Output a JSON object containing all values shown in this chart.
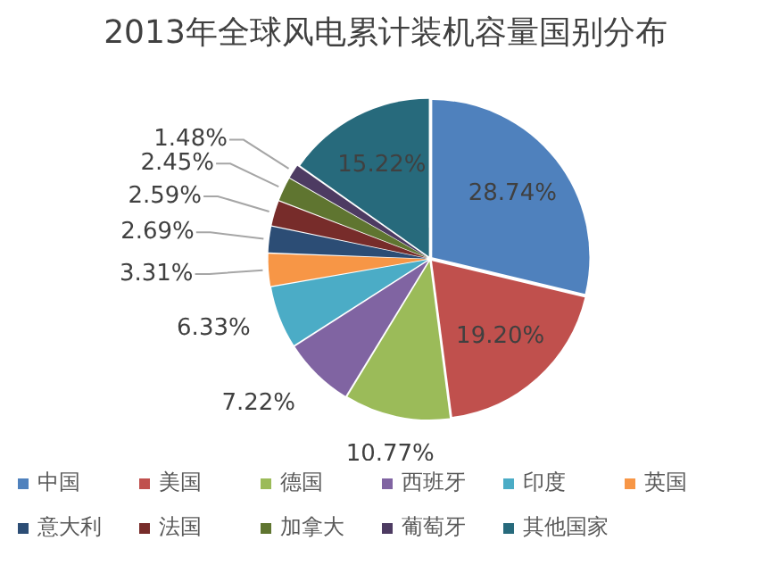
{
  "chart_data": {
    "type": "pie",
    "title": "2013年全球风电累计装机容量国别分布",
    "categories": [
      "中国",
      "美国",
      "德国",
      "西班牙",
      "印度",
      "英国",
      "意大利",
      "法国",
      "加拿大",
      "葡萄牙",
      "其他国家"
    ],
    "values": [
      28.74,
      19.2,
      10.77,
      7.22,
      6.33,
      3.31,
      2.69,
      2.59,
      2.45,
      1.48,
      15.22
    ],
    "value_labels": [
      "28.74%",
      "19.20%",
      "10.77%",
      "7.22%",
      "6.33%",
      "3.31%",
      "2.69%",
      "2.59%",
      "2.45%",
      "1.48%",
      "15.22%"
    ],
    "colors": [
      "#4f81bd",
      "#c0504d",
      "#9bbb59",
      "#8064a2",
      "#4bacc6",
      "#f79646",
      "#2c4d75",
      "#772c2a",
      "#5f7530",
      "#4d3b62",
      "#276a7c"
    ],
    "legend": "bottom"
  }
}
